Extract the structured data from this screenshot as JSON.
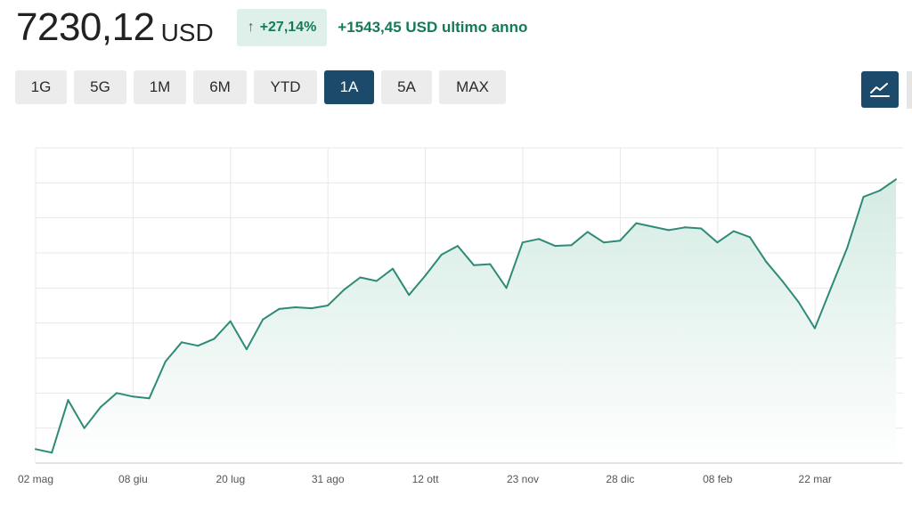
{
  "header": {
    "price": "7230,12",
    "currency": "USD",
    "change_arrow": "↑",
    "change_percent": "+27,14%",
    "change_absolute": "+1543,45 USD ultimo anno"
  },
  "ranges": [
    {
      "label": "1G",
      "active": false
    },
    {
      "label": "5G",
      "active": false
    },
    {
      "label": "1M",
      "active": false
    },
    {
      "label": "6M",
      "active": false
    },
    {
      "label": "YTD",
      "active": false
    },
    {
      "label": "1A",
      "active": true
    },
    {
      "label": "5A",
      "active": false
    },
    {
      "label": "MAX",
      "active": false
    }
  ],
  "chart_type_icon": "line-chart-icon",
  "colors": {
    "line": "#2f8a78",
    "area": "#e3f1ec",
    "positive": "#137a5a",
    "button_active": "#1b4a6b",
    "button_inactive": "#ececec"
  },
  "chart_data": {
    "type": "area",
    "title": "",
    "xlabel": "",
    "ylabel": "",
    "x_tick_labels": [
      "02 mag",
      "08 giu",
      "20 lug",
      "31 ago",
      "12 ott",
      "23 nov",
      "28 dic",
      "08 feb",
      "22 mar"
    ],
    "y_labels_visible": false,
    "grid": true,
    "ylim": [
      0,
      9
    ],
    "series": [
      {
        "values": [
          0.4,
          0.3,
          1.8,
          1.0,
          1.6,
          2.0,
          1.9,
          1.85,
          2.9,
          3.45,
          3.35,
          3.55,
          4.05,
          3.25,
          4.1,
          4.4,
          4.45,
          4.42,
          4.5,
          4.95,
          5.3,
          5.2,
          5.55,
          4.8,
          5.35,
          5.95,
          6.2,
          5.65,
          5.68,
          5.0,
          6.3,
          6.4,
          6.2,
          6.22,
          6.6,
          6.3,
          6.35,
          6.85,
          6.75,
          6.65,
          6.73,
          6.7,
          6.3,
          6.62,
          6.45,
          5.75,
          5.2,
          4.6,
          3.85,
          5.0,
          6.15,
          7.6,
          7.78,
          8.1
        ]
      }
    ]
  }
}
